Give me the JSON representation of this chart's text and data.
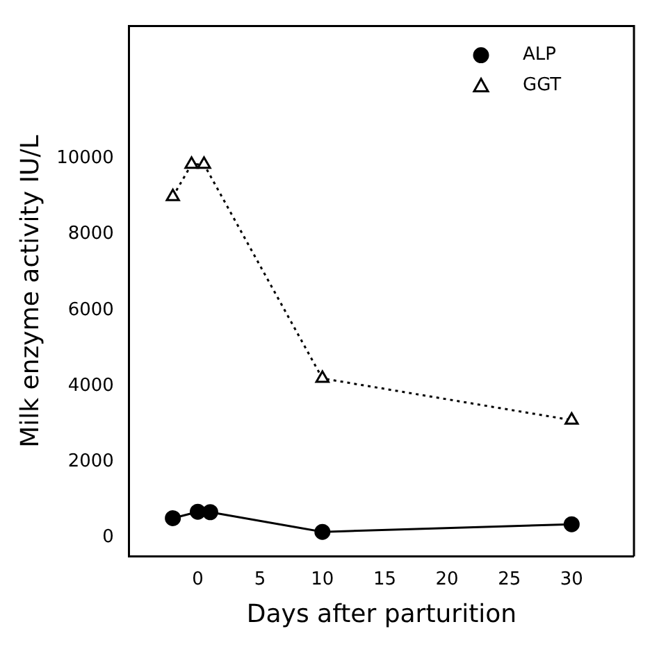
{
  "chart_data": {
    "type": "line",
    "xlabel": "Days after parturition",
    "ylabel": "Milk enzyme activity IU/L",
    "xlim": [
      -5.5,
      35
    ],
    "xticks": [
      0,
      5,
      10,
      15,
      20,
      25,
      30
    ],
    "ylim": [
      -500,
      13500
    ],
    "yticks": [
      0,
      2000,
      4000,
      6000,
      8000,
      10000
    ],
    "grid": false,
    "legend": "top right",
    "series": [
      {
        "name": "ALP",
        "color": "#000000",
        "marker": "circle",
        "line_style": "solid",
        "x": [
          -2,
          0,
          1,
          10,
          30
        ],
        "values": [
          510,
          680,
          670,
          150,
          350
        ]
      },
      {
        "name": "GGT",
        "color": "#000000",
        "marker": "triangle",
        "line_style": "dotted",
        "x": [
          -2,
          -0.5,
          0.5,
          10,
          30
        ],
        "values": [
          9000,
          9850,
          9850,
          4200,
          3100
        ]
      }
    ]
  }
}
